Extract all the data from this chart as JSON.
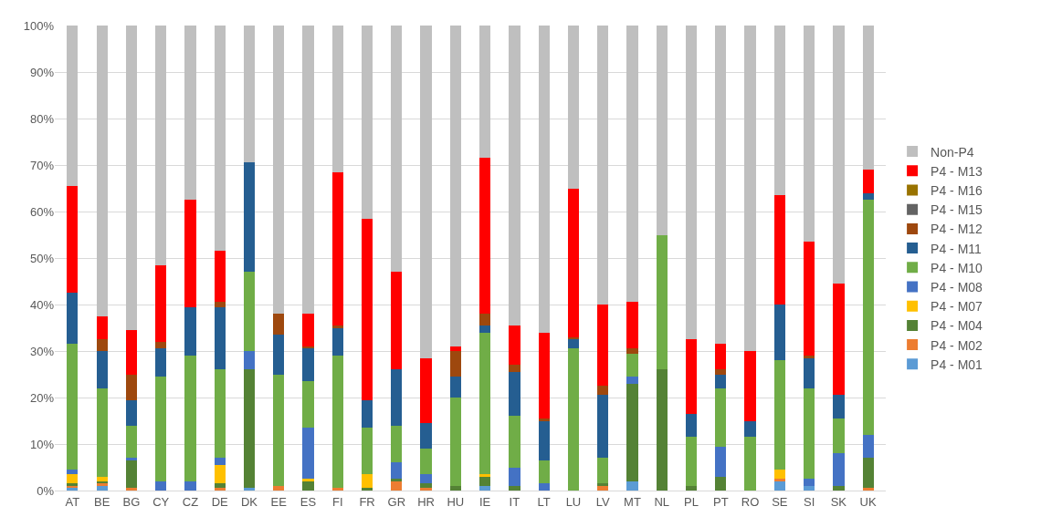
{
  "chart_data": {
    "type": "bar",
    "stacked": true,
    "grid": "y",
    "legend": "right",
    "categories": [
      "AT",
      "BE",
      "BG",
      "CY",
      "CZ",
      "DE",
      "DK",
      "EE",
      "ES",
      "FI",
      "FR",
      "GR",
      "HR",
      "HU",
      "IE",
      "IT",
      "LT",
      "LU",
      "LV",
      "MT",
      "NL",
      "PL",
      "PT",
      "RO",
      "SE",
      "SI",
      "SK",
      "UK"
    ],
    "ylim": [
      0,
      100
    ],
    "yticks": [
      {
        "value": 0,
        "label": "0%"
      },
      {
        "value": 10,
        "label": "10%"
      },
      {
        "value": 20,
        "label": "20%"
      },
      {
        "value": 30,
        "label": "30%"
      },
      {
        "value": 40,
        "label": "40%"
      },
      {
        "value": 50,
        "label": "50%"
      },
      {
        "value": 60,
        "label": "60%"
      },
      {
        "value": 70,
        "label": "70%"
      },
      {
        "value": 80,
        "label": "80%"
      },
      {
        "value": 90,
        "label": "90%"
      },
      {
        "value": 100,
        "label": "100%"
      }
    ],
    "series": [
      {
        "name": "P4 - M01",
        "color": "#5b9bd5",
        "values": [
          0.5,
          1,
          0,
          0,
          0,
          0,
          0.5,
          0,
          0,
          0,
          0,
          0,
          0,
          0,
          1,
          0,
          0,
          0,
          0,
          2,
          0,
          0,
          0,
          0,
          2,
          1,
          0,
          0
        ]
      },
      {
        "name": "P4 - M02",
        "color": "#ed7d31",
        "values": [
          0.5,
          0.5,
          0.5,
          0,
          0,
          0.5,
          0,
          1,
          0,
          0.5,
          0,
          2,
          0.5,
          0,
          0,
          0,
          0,
          0,
          1,
          0,
          0,
          0,
          0,
          0,
          0.5,
          0,
          0,
          0.5
        ]
      },
      {
        "name": "P4 - M04",
        "color": "#548235",
        "values": [
          0.5,
          0.5,
          6,
          0,
          0,
          1,
          25.5,
          0,
          2,
          0,
          0.5,
          0.5,
          1,
          1,
          2,
          1,
          0,
          0,
          0.5,
          21,
          26,
          1,
          3,
          0,
          0,
          0,
          1,
          6.5
        ]
      },
      {
        "name": "P4 - M07",
        "color": "#ffc000",
        "values": [
          2,
          1,
          0,
          0,
          0,
          4,
          0,
          0,
          0.5,
          0,
          3,
          0,
          0,
          0,
          0.5,
          0,
          0,
          0,
          0,
          0,
          0,
          0,
          0,
          0,
          2,
          0,
          0,
          0
        ]
      },
      {
        "name": "P4 - M08",
        "color": "#4472c4",
        "values": [
          1,
          0,
          0.5,
          2,
          2,
          1.5,
          4,
          0,
          11,
          0,
          0,
          3.5,
          2,
          0,
          0,
          4,
          1.5,
          0,
          0,
          1.5,
          0,
          0,
          6.5,
          0,
          0,
          1.5,
          7,
          5
        ]
      },
      {
        "name": "P4 - M10",
        "color": "#70ad47",
        "values": [
          27,
          19,
          7,
          22.5,
          27,
          19,
          17,
          24,
          10,
          28.5,
          10,
          8,
          5.5,
          19,
          30.5,
          11,
          5,
          30.5,
          5.5,
          5,
          29,
          10.5,
          12.5,
          11.5,
          23.5,
          19.5,
          7.5,
          50.5
        ]
      },
      {
        "name": "P4 - M11",
        "color": "#255e91",
        "values": [
          11,
          8,
          5.5,
          6,
          10.5,
          13.5,
          23.5,
          8.5,
          7,
          6,
          6,
          12,
          5.5,
          4.5,
          1.5,
          9.5,
          8.5,
          2,
          13.5,
          0,
          0,
          5,
          3,
          3.5,
          12,
          6.5,
          5,
          1.5
        ]
      },
      {
        "name": "P4 - M12",
        "color": "#9e480e",
        "values": [
          0,
          2.5,
          5.5,
          1.5,
          0,
          1,
          0,
          4.5,
          0.5,
          0.5,
          0,
          0,
          0,
          5.5,
          2.5,
          1.5,
          0.5,
          0.5,
          2,
          1,
          0,
          0,
          1,
          0,
          0,
          0.5,
          0,
          0
        ]
      },
      {
        "name": "P4 - M15",
        "color": "#636363",
        "values": [
          0,
          0,
          0,
          0,
          0,
          0,
          0,
          0,
          0,
          0,
          0,
          0,
          0,
          0,
          0,
          0,
          0,
          0,
          0,
          0,
          0,
          0,
          0,
          0,
          0,
          0,
          0,
          0
        ]
      },
      {
        "name": "P4 - M16",
        "color": "#997300",
        "values": [
          0,
          0,
          0,
          0,
          0,
          0,
          0,
          0,
          0,
          0,
          0,
          0,
          0,
          0,
          0,
          0,
          0,
          0,
          0,
          0,
          0,
          0,
          0,
          0,
          0,
          0,
          0,
          0
        ]
      },
      {
        "name": "P4 - M13",
        "color": "#ff0000",
        "values": [
          23,
          5,
          9.5,
          16.5,
          23,
          11,
          0,
          0,
          7,
          33,
          39,
          21,
          14,
          1,
          33.5,
          8.5,
          18.5,
          32,
          17.5,
          10,
          0,
          16,
          5.5,
          15,
          23.5,
          24.5,
          24,
          5
        ]
      },
      {
        "name": "Non-P4",
        "color": "#bfbfbf",
        "values": [
          34.5,
          62.5,
          65.5,
          51.5,
          37.5,
          48.5,
          29.5,
          62,
          62,
          31.5,
          41.5,
          53,
          71.5,
          69,
          28.5,
          64.5,
          66,
          35,
          60,
          59.5,
          45,
          67.5,
          68.5,
          70,
          36.5,
          46.5,
          55.5,
          31
        ]
      }
    ]
  }
}
